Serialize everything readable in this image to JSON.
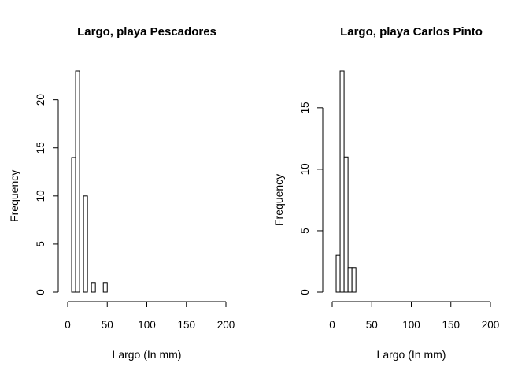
{
  "chart_data": [
    {
      "type": "bar",
      "subtype": "histogram",
      "title": "Largo, playa Pescadores",
      "xlabel": "Largo (In mm)",
      "ylabel": "Frequency",
      "xlim": [
        0,
        200
      ],
      "ylim": [
        0,
        23
      ],
      "xticks": [
        0,
        50,
        100,
        150,
        200
      ],
      "yticks": [
        0,
        5,
        10,
        15,
        20
      ],
      "bin_width": 5,
      "bins": [
        {
          "start": 5,
          "end": 10,
          "count": 14
        },
        {
          "start": 10,
          "end": 15,
          "count": 23
        },
        {
          "start": 15,
          "end": 20,
          "count": 0
        },
        {
          "start": 20,
          "end": 25,
          "count": 10
        },
        {
          "start": 25,
          "end": 30,
          "count": 0
        },
        {
          "start": 30,
          "end": 35,
          "count": 1
        },
        {
          "start": 35,
          "end": 40,
          "count": 0
        },
        {
          "start": 40,
          "end": 45,
          "count": 0
        },
        {
          "start": 45,
          "end": 50,
          "count": 1
        }
      ],
      "grid": false
    },
    {
      "type": "bar",
      "subtype": "histogram",
      "title": "Largo, playa Carlos Pinto",
      "xlabel": "Largo (In mm)",
      "ylabel": "Frequency",
      "xlim": [
        0,
        200
      ],
      "ylim": [
        0,
        18
      ],
      "xticks": [
        0,
        50,
        100,
        150,
        200
      ],
      "yticks": [
        0,
        5,
        10,
        15
      ],
      "bin_width": 5,
      "bins": [
        {
          "start": 5,
          "end": 10,
          "count": 3
        },
        {
          "start": 10,
          "end": 15,
          "count": 18
        },
        {
          "start": 15,
          "end": 20,
          "count": 11
        },
        {
          "start": 20,
          "end": 25,
          "count": 2
        },
        {
          "start": 25,
          "end": 30,
          "count": 2
        }
      ],
      "grid": false
    }
  ]
}
